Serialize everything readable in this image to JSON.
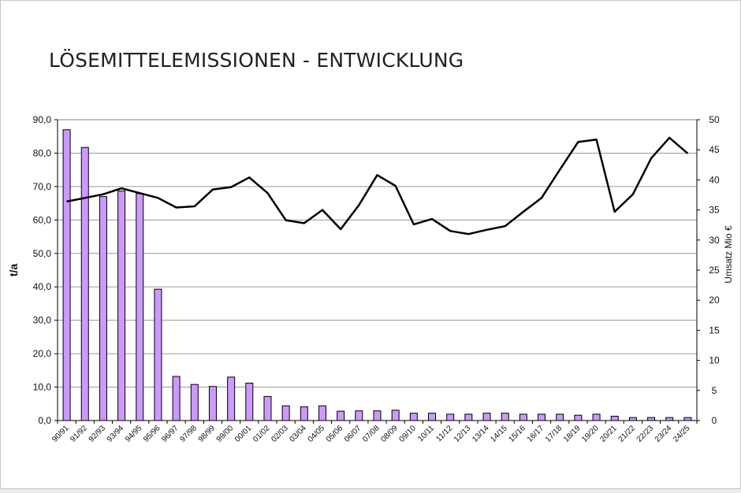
{
  "chart_data": {
    "type": "bar",
    "title": "LÖSEMITTELEMISSIONEN - ENTWICKLUNG",
    "ylabel": "t/a",
    "y2label": "Umsatz Mio €",
    "ylim": [
      0,
      90
    ],
    "y2lim": [
      0,
      50
    ],
    "yticks": [
      "0,0",
      "10,0",
      "20,0",
      "30,0",
      "40,0",
      "50,0",
      "60,0",
      "70,0",
      "80,0",
      "90,0"
    ],
    "y2ticks": [
      "0",
      "5",
      "10",
      "15",
      "20",
      "25",
      "30",
      "35",
      "40",
      "45",
      "50"
    ],
    "grid": true,
    "bar_color": "#cc99ff",
    "line_color": "#000000",
    "categories": [
      "90/91",
      "91/92",
      "92/93",
      "93/94",
      "94/95",
      "95/96",
      "96/97",
      "97/98",
      "98/99",
      "99/00",
      "00/01",
      "01/02",
      "02/03",
      "03/04",
      "04/05",
      "05/06",
      "06/07",
      "07/08",
      "08/09",
      "09/10",
      "10/11",
      "11/12",
      "12/13",
      "13/14",
      "14/15",
      "15/16",
      "16/17",
      "17/18",
      "18/19",
      "19/20",
      "20/21",
      "21/22",
      "22/23",
      "23/24",
      "24/25"
    ],
    "series": [
      {
        "type": "bar",
        "axis": "left",
        "values": [
          87.0,
          81.7,
          67.0,
          68.7,
          67.9,
          39.3,
          13.2,
          10.8,
          10.2,
          13.0,
          11.2,
          7.2,
          4.4,
          4.1,
          4.4,
          2.8,
          2.9,
          2.9,
          3.1,
          2.2,
          2.2,
          1.9,
          1.9,
          2.2,
          2.2,
          1.9,
          1.9,
          1.9,
          1.6,
          1.9,
          1.3,
          0.9,
          0.9,
          0.9,
          0.9
        ]
      },
      {
        "type": "line",
        "axis": "right",
        "values": [
          36.4,
          37.0,
          37.6,
          38.6,
          37.8,
          37.0,
          35.4,
          35.6,
          38.4,
          38.8,
          40.4,
          37.8,
          33.3,
          32.8,
          35.0,
          31.8,
          35.8,
          40.8,
          39.0,
          32.6,
          33.5,
          31.5,
          31.0,
          31.7,
          32.3,
          34.7,
          37.0,
          41.7,
          46.3,
          46.7,
          34.7,
          37.6,
          43.6,
          47.0,
          44.4
        ]
      }
    ]
  }
}
